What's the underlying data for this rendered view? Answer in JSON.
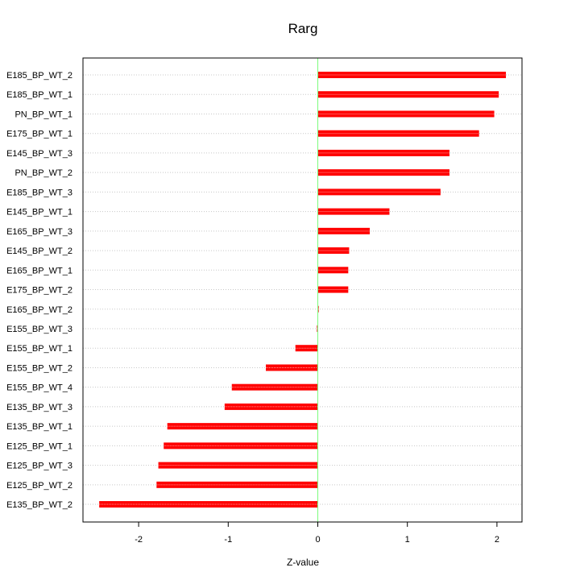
{
  "chart_data": {
    "type": "bar",
    "orientation": "horizontal",
    "title": "Rarg",
    "xlabel": "Z-value",
    "ylabel": "",
    "xlim": [
      -2.6,
      2.3
    ],
    "x_ticks": [
      -2,
      -1,
      0,
      1,
      2
    ],
    "grid": "horizontal dotted lines at each category",
    "reference_line": {
      "x": 0,
      "color": "#7CFC7C"
    },
    "bar_color": "#ff0000",
    "categories": [
      "E185_BP_WT_2",
      "E185_BP_WT_1",
      "PN_BP_WT_1",
      "E175_BP_WT_1",
      "E145_BP_WT_3",
      "PN_BP_WT_2",
      "E185_BP_WT_3",
      "E145_BP_WT_1",
      "E165_BP_WT_3",
      "E145_BP_WT_2",
      "E165_BP_WT_1",
      "E175_BP_WT_2",
      "E165_BP_WT_2",
      "E155_BP_WT_3",
      "E155_BP_WT_1",
      "E155_BP_WT_2",
      "E155_BP_WT_4",
      "E135_BP_WT_3",
      "E135_BP_WT_1",
      "E125_BP_WT_1",
      "E125_BP_WT_3",
      "E125_BP_WT_2",
      "E135_BP_WT_2"
    ],
    "values": [
      2.1,
      2.02,
      1.97,
      1.8,
      1.47,
      1.47,
      1.37,
      0.8,
      0.58,
      0.35,
      0.34,
      0.34,
      0.01,
      -0.01,
      -0.25,
      -0.58,
      -0.96,
      -1.04,
      -1.68,
      -1.72,
      -1.78,
      -1.8,
      -2.44
    ]
  }
}
